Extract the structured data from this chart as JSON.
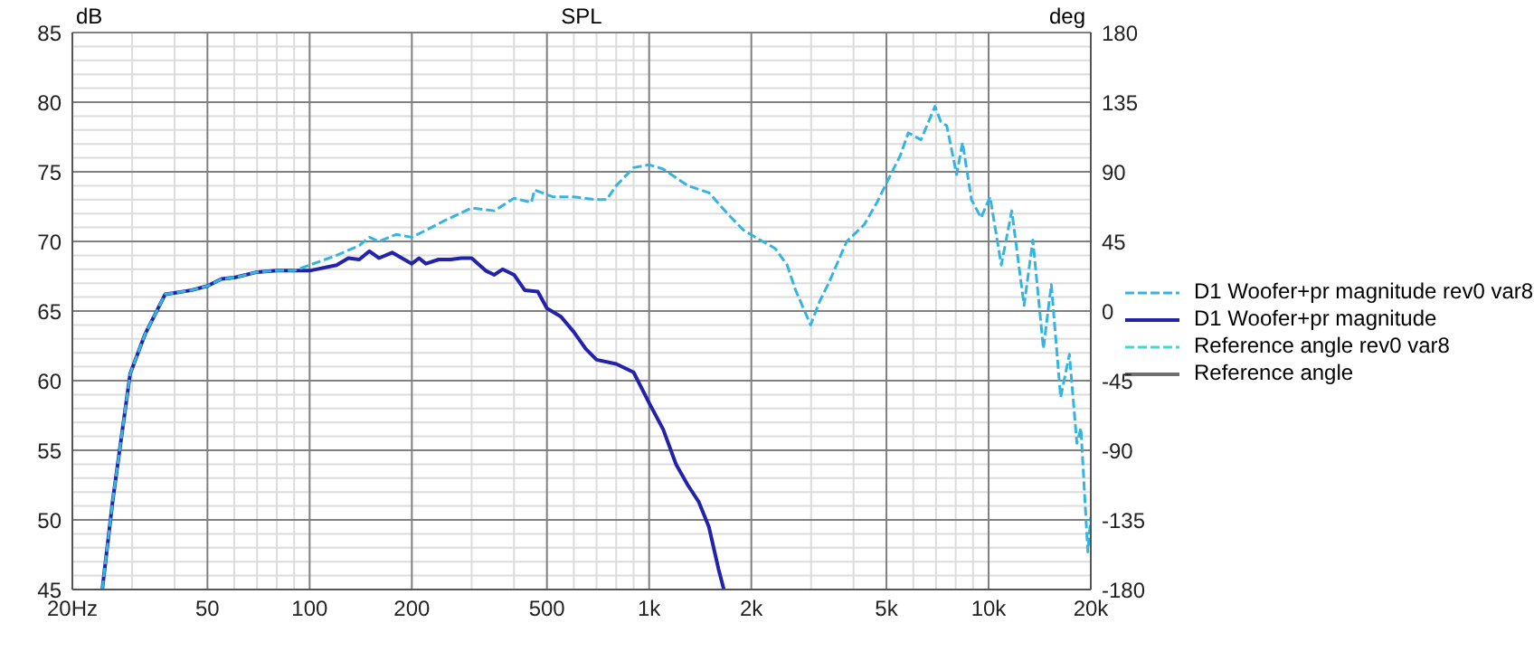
{
  "chart_data": {
    "type": "line",
    "title": "SPL",
    "ylabel": "dB",
    "y2label": "deg",
    "log": "x",
    "grid": true,
    "legend": "right",
    "xlim": [
      20,
      20000
    ],
    "xticks": [
      {
        "value": 20,
        "label": "20Hz"
      },
      {
        "value": 30,
        "label": null
      },
      {
        "value": 40,
        "label": null
      },
      50,
      {
        "value": 60,
        "label": null
      },
      {
        "value": 70,
        "label": null
      },
      {
        "value": 80,
        "label": null
      },
      {
        "value": 90,
        "label": null
      },
      100,
      200,
      {
        "value": 300,
        "label": null
      },
      {
        "value": 400,
        "label": null
      },
      500,
      {
        "value": 600,
        "label": null
      },
      {
        "value": 700,
        "label": null
      },
      {
        "value": 800,
        "label": null
      },
      {
        "value": 900,
        "label": null
      },
      {
        "value": 1000,
        "label": "1k"
      },
      {
        "value": 2000,
        "label": "2k"
      },
      {
        "value": 3000,
        "label": null
      },
      {
        "value": 4000,
        "label": null
      },
      {
        "value": 5000,
        "label": "5k"
      },
      {
        "value": 6000,
        "label": null
      },
      {
        "value": 7000,
        "label": null
      },
      {
        "value": 8000,
        "label": null
      },
      {
        "value": 9000,
        "label": null
      },
      {
        "value": 10000,
        "label": "10k"
      },
      {
        "value": 20000,
        "label": "20k"
      }
    ],
    "ylim": [
      45,
      85
    ],
    "yticks": [
      45,
      {
        "value": 46,
        "label": null
      },
      {
        "value": 47,
        "label": null
      },
      {
        "value": 48,
        "label": null
      },
      {
        "value": 49,
        "label": null
      },
      50,
      {
        "value": 51,
        "label": null
      },
      {
        "value": 52,
        "label": null
      },
      {
        "value": 53,
        "label": null
      },
      {
        "value": 54,
        "label": null
      },
      55,
      {
        "value": 56,
        "label": null
      },
      {
        "value": 57,
        "label": null
      },
      {
        "value": 58,
        "label": null
      },
      {
        "value": 59,
        "label": null
      },
      60,
      {
        "value": 61,
        "label": null
      },
      {
        "value": 62,
        "label": null
      },
      {
        "value": 63,
        "label": null
      },
      {
        "value": 64,
        "label": null
      },
      65,
      {
        "value": 66,
        "label": null
      },
      {
        "value": 67,
        "label": null
      },
      {
        "value": 68,
        "label": null
      },
      {
        "value": 69,
        "label": null
      },
      70,
      {
        "value": 71,
        "label": null
      },
      {
        "value": 72,
        "label": null
      },
      {
        "value": 73,
        "label": null
      },
      {
        "value": 74,
        "label": null
      },
      75,
      {
        "value": 76,
        "label": null
      },
      {
        "value": 77,
        "label": null
      },
      {
        "value": 78,
        "label": null
      },
      {
        "value": 79,
        "label": null
      },
      80,
      {
        "value": 81,
        "label": null
      },
      {
        "value": 82,
        "label": null
      },
      {
        "value": 83,
        "label": null
      },
      {
        "value": 84,
        "label": null
      },
      85
    ],
    "y2lim": [
      -180,
      180
    ],
    "y2ticks": [
      -180,
      -135,
      -90,
      -45,
      0,
      45,
      90,
      135,
      180
    ],
    "series": [
      {
        "name": "D1 Woofer+pr magnitude rev0 var8",
        "color": "#36b4e0",
        "line_style": "dashed",
        "x": [
          24.5,
          26.3,
          29.6,
          32.7,
          37.5,
          40,
          45,
          50,
          55,
          60,
          70,
          80,
          90,
          100,
          120,
          140,
          150,
          160,
          180,
          200,
          220,
          250,
          300,
          350,
          400,
          450,
          460,
          520,
          600,
          700,
          750,
          800,
          900,
          1000,
          1100,
          1300,
          1500,
          1700,
          1900,
          2125,
          2350,
          2550,
          2700,
          2990,
          3180,
          3380,
          3820,
          4300,
          4690,
          5270,
          5480,
          5800,
          6320,
          6500,
          6950,
          7230,
          7530,
          8050,
          8380,
          8900,
          9500,
          10100,
          10900,
          11700,
          12720,
          13500,
          14500,
          15300,
          16300,
          17300,
          18200,
          18700,
          19600,
          20000
        ],
        "values": [
          45,
          51.4,
          60.5,
          63.3,
          66.2,
          66.3,
          66.5,
          66.8,
          67.3,
          67.4,
          67.8,
          67.9,
          67.9,
          68.3,
          69,
          69.7,
          70.3,
          70,
          70.5,
          70.3,
          70.8,
          71.5,
          72.4,
          72.2,
          73.1,
          72.8,
          73.7,
          73.2,
          73.2,
          73,
          73,
          74,
          75.3,
          75.5,
          75.2,
          74,
          73.5,
          72,
          70.8,
          70.1,
          69.5,
          68.3,
          66.5,
          64,
          65.7,
          67,
          70,
          71.2,
          72.8,
          75.3,
          76.1,
          77.8,
          77.3,
          78,
          79.7,
          78.6,
          78.3,
          74.8,
          77.1,
          73,
          71.7,
          73.2,
          68.3,
          72.2,
          65.4,
          70.1,
          62.3,
          66.9,
          58.8,
          61.9,
          55.5,
          56.6,
          47.7,
          50.2
        ]
      },
      {
        "name": "D1 Woofer+pr magnitude",
        "color": "#2222aa",
        "line_style": "solid",
        "x": [
          24.5,
          26.3,
          29.6,
          32.7,
          37.5,
          40,
          45,
          50,
          55,
          60,
          70,
          80,
          90,
          100,
          120,
          130,
          140,
          150,
          160,
          175,
          190,
          200,
          210,
          220,
          240,
          260,
          280,
          300,
          330,
          350,
          370,
          400,
          430,
          470,
          500,
          550,
          600,
          650,
          700,
          800,
          900,
          1000,
          1100,
          1200,
          1300,
          1400,
          1500,
          1600,
          1660
        ],
        "values": [
          45,
          51.4,
          60.5,
          63.3,
          66.2,
          66.3,
          66.5,
          66.8,
          67.3,
          67.4,
          67.8,
          67.9,
          67.9,
          67.9,
          68.3,
          68.8,
          68.7,
          69.3,
          68.8,
          69.2,
          68.7,
          68.4,
          68.8,
          68.4,
          68.7,
          68.7,
          68.8,
          68.8,
          67.9,
          67.6,
          68,
          67.6,
          66.5,
          66.4,
          65.2,
          64.6,
          63.5,
          62.3,
          61.5,
          61.2,
          60.6,
          58.4,
          56.5,
          54,
          52.5,
          51.3,
          49.5,
          46.5,
          45
        ]
      },
      {
        "name": "Reference angle rev0 var8",
        "color": "#40d8d0",
        "line_style": "dashed"
      },
      {
        "name": "Reference angle",
        "color": "#707070",
        "line_style": "solid"
      }
    ]
  }
}
